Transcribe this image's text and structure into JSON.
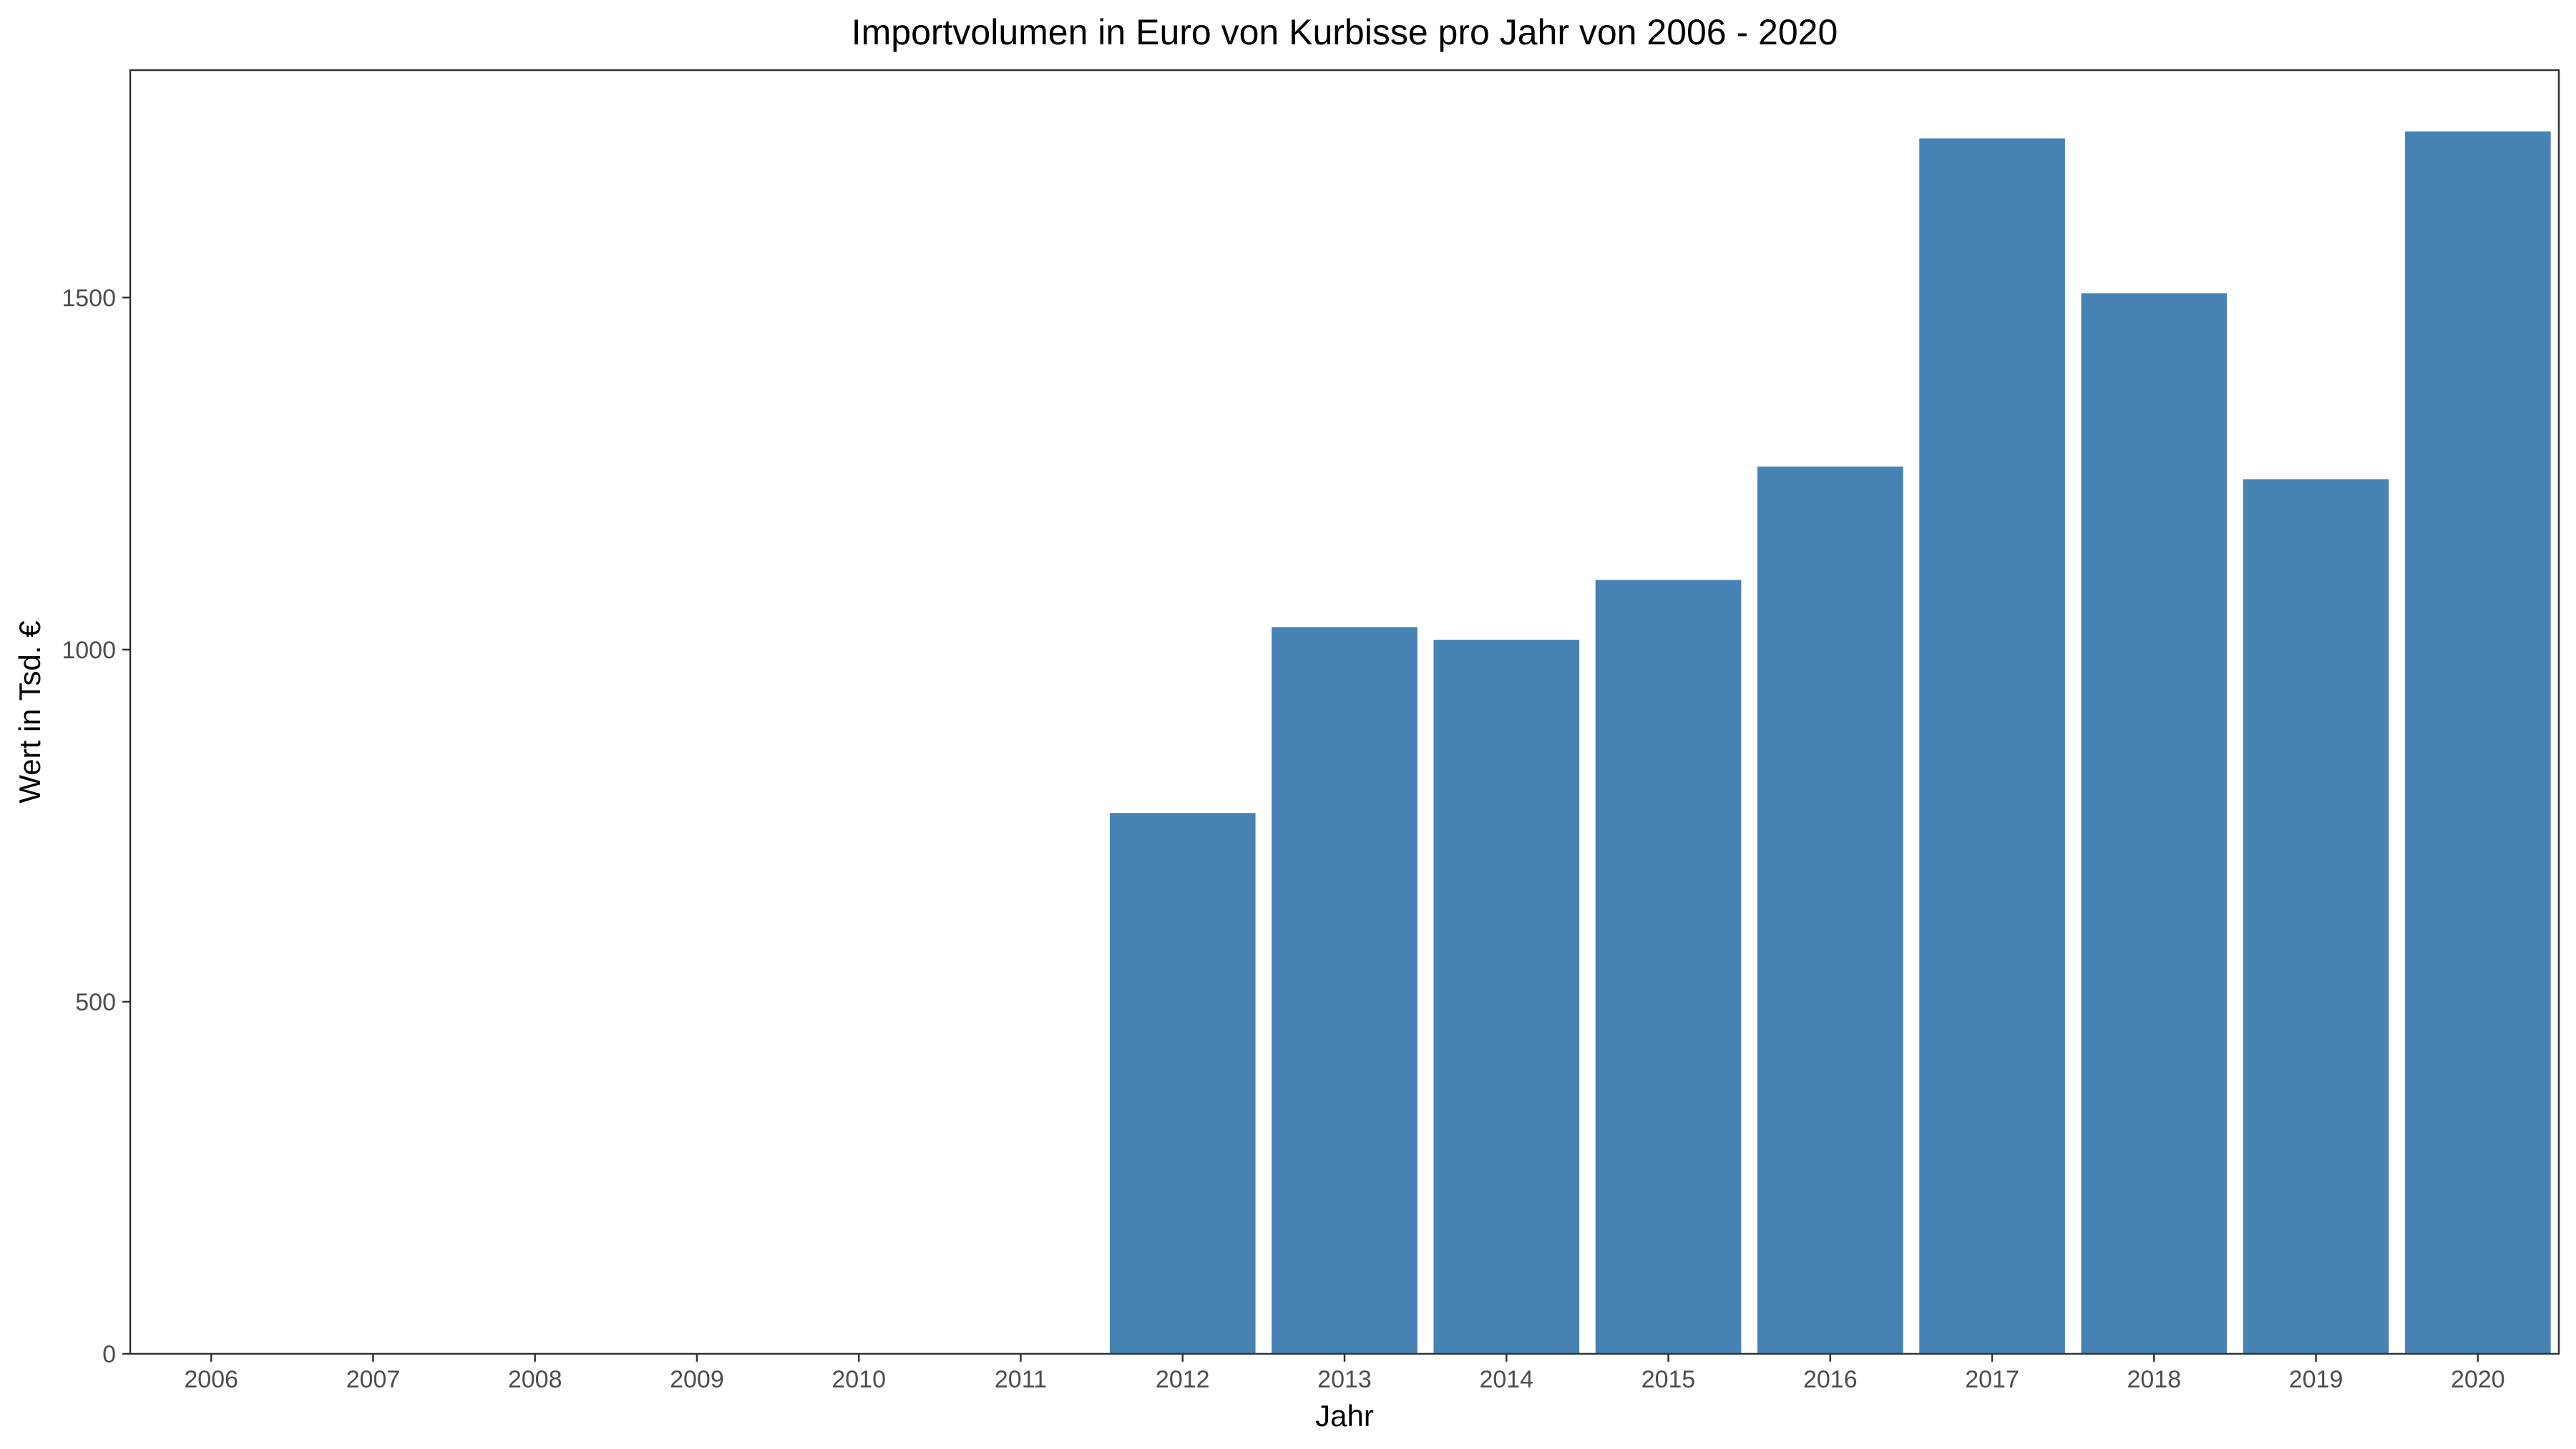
{
  "chart_data": {
    "type": "bar",
    "title": "Importvolumen in Euro von Kurbisse pro Jahr von 2006 - 2020",
    "xlabel": "Jahr",
    "ylabel": "Wert in Tsd. €",
    "categories": [
      "2006",
      "2007",
      "2008",
      "2009",
      "2010",
      "2011",
      "2012",
      "2013",
      "2014",
      "2015",
      "2016",
      "2017",
      "2018",
      "2019",
      "2020"
    ],
    "values": [
      0,
      0,
      0,
      0,
      0,
      0,
      768,
      1032,
      1014,
      1099,
      1260,
      1726,
      1506,
      1242,
      1736
    ],
    "ylim": [
      0,
      1823
    ],
    "yticks": [
      0,
      500,
      1000,
      1500
    ],
    "grid": false,
    "bar_color": "#4682b4"
  }
}
